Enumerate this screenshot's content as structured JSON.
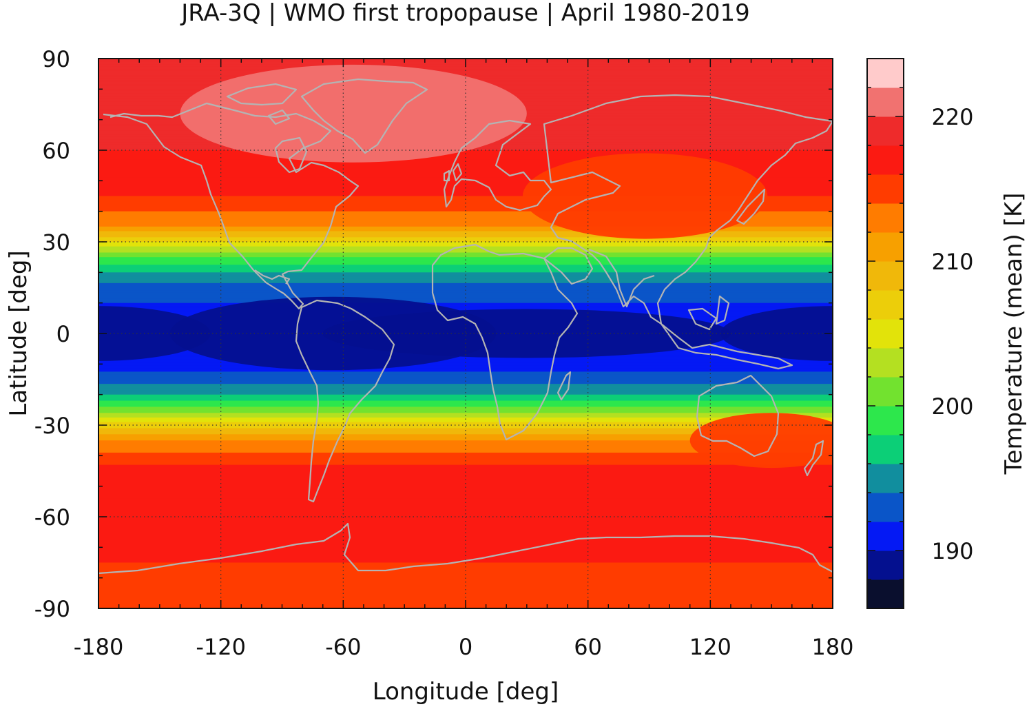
{
  "title": "JRA-3Q | WMO first tropopause | April 1980-2019",
  "map": {
    "xlabel": "Longitude [deg]",
    "ylabel": "Latitude [deg]",
    "xlim": [
      -180,
      180
    ],
    "ylim": [
      -90,
      90
    ],
    "xticks": [
      "-180",
      "-120",
      "-60",
      "0",
      "60",
      "120",
      "180"
    ],
    "yticks": [
      "90",
      "60",
      "30",
      "0",
      "-30",
      "-60",
      "-90"
    ],
    "grid": "dotted at 60 deg longitude / 30 deg latitude",
    "coastline_color": "#b4b4b4"
  },
  "colorbar": {
    "label": "Temperature (mean) [K]",
    "ticks": [
      "190",
      "200",
      "210",
      "220"
    ],
    "range": [
      186,
      224
    ],
    "level_step": 2,
    "colors": [
      "#0a0f2e",
      "#04108f",
      "#0419f4",
      "#0a55c8",
      "#118e9e",
      "#0ccf77",
      "#2de74c",
      "#72e22f",
      "#b4e021",
      "#e2e30a",
      "#ecce0a",
      "#f0b80a",
      "#f7a000",
      "#ff7c00",
      "#ff3c00",
      "#fb1a12",
      "#ee2b2b",
      "#f17270",
      "#ffcbcb"
    ]
  },
  "chart_data": {
    "type": "heatmap",
    "title": "JRA-3Q | WMO first tropopause | April 1980-2019",
    "xlabel": "Longitude [deg]",
    "ylabel": "Latitude [deg]",
    "zlabel": "Temperature (mean) [K]",
    "xlim": [
      -180,
      180
    ],
    "ylim": [
      -90,
      90
    ],
    "zlim": [
      186,
      224
    ],
    "zonal_mean_temperature_K": {
      "lat": [
        90,
        75,
        60,
        45,
        35,
        30,
        25,
        20,
        15,
        10,
        5,
        0,
        -5,
        -10,
        -15,
        -20,
        -25,
        -30,
        -35,
        -45,
        -60,
        -75,
        -85,
        -90
      ],
      "T": [
        219,
        219,
        218,
        216,
        212,
        206,
        200,
        196,
        193,
        192,
        191,
        190,
        190,
        191,
        193,
        196,
        201,
        207,
        212,
        217,
        218,
        216,
        214,
        214
      ]
    },
    "features": [
      {
        "lon": 180,
        "lat": 0,
        "T": 189
      },
      {
        "lon": -65,
        "lat": 0,
        "T": 189
      },
      {
        "lon": 30,
        "lat": 0,
        "T": 189
      },
      {
        "lon": -55,
        "lat": 72,
        "T": 221
      },
      {
        "lon": 88,
        "lat": 45,
        "T": 214
      },
      {
        "lon": 150,
        "lat": -35,
        "T": 215
      }
    ]
  }
}
